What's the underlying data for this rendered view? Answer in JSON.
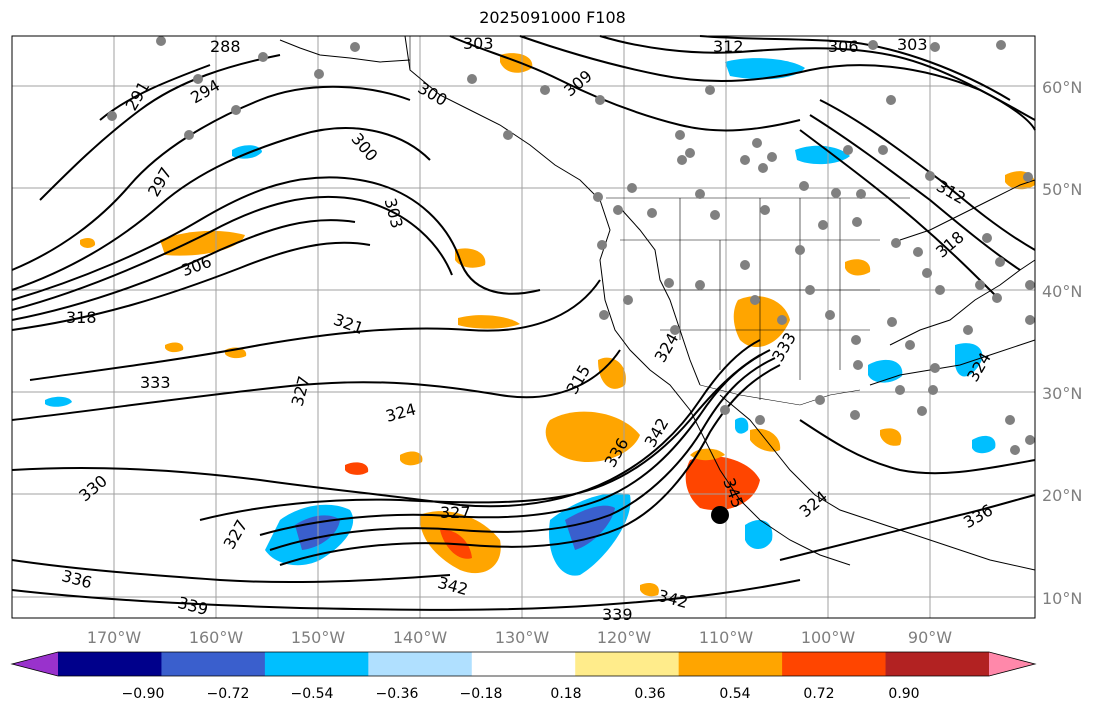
{
  "title": "2025091000 F108",
  "map": {
    "latitudes": [
      "60°N",
      "50°N",
      "40°N",
      "30°N",
      "20°N",
      "10°N"
    ],
    "longitudes": [
      "170°W",
      "160°W",
      "150°W",
      "140°W",
      "130°W",
      "120°W",
      "110°W",
      "100°W",
      "90°W"
    ],
    "contour_labels": [
      "288",
      "303",
      "312",
      "306",
      "303",
      "291",
      "294",
      "309",
      "300",
      "297",
      "300",
      "303",
      "312",
      "306",
      "318",
      "321",
      "318",
      "324",
      "333",
      "327",
      "324",
      "315",
      "324",
      "333",
      "330",
      "327",
      "327",
      "342",
      "342",
      "339",
      "339",
      "336",
      "336",
      "342",
      "336",
      "324",
      "345"
    ],
    "contour_color": "#000000",
    "station_color": "#808080"
  },
  "colorbar": {
    "ticks": [
      "−0.90",
      "−0.72",
      "−0.54",
      "−0.36",
      "−0.18",
      "0.18",
      "0.36",
      "0.54",
      "0.72",
      "0.90"
    ],
    "colors": [
      "#9932cc",
      "#00008b",
      "#3a5fcd",
      "#00bfff",
      "#b0e0ff",
      "#ffffff",
      "#ffec8b",
      "#ffa500",
      "#ff4500",
      "#b22222",
      "#ff88aa"
    ]
  }
}
